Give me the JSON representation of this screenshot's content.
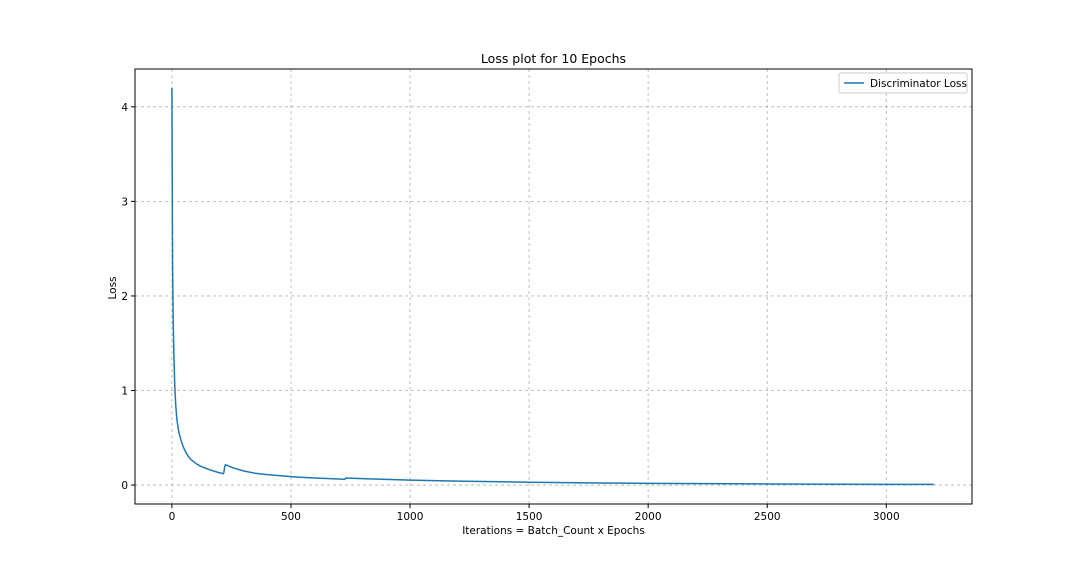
{
  "chart_data": {
    "type": "line",
    "title": "Loss plot for 10 Epochs",
    "xlabel": "Iterations = Batch_Count x Epochs",
    "ylabel": "Loss",
    "xlim": [
      -155,
      3360
    ],
    "ylim": [
      -0.2,
      4.4
    ],
    "xticks": [
      0,
      500,
      1000,
      1500,
      2000,
      2500,
      3000
    ],
    "xtick_labels": [
      "0",
      "500",
      "1000",
      "1500",
      "2000",
      "2500",
      "3000"
    ],
    "yticks": [
      0,
      1,
      2,
      3,
      4
    ],
    "ytick_labels": [
      "0",
      "1",
      "2",
      "3",
      "4"
    ],
    "grid": true,
    "grid_style": "dashed",
    "legend_position": "top-right",
    "series": [
      {
        "name": "Discriminator Loss",
        "color": "#1f77b4",
        "x": [
          0,
          1,
          2,
          3,
          5,
          8,
          12,
          16,
          20,
          25,
          30,
          40,
          50,
          60,
          70,
          80,
          100,
          120,
          140,
          160,
          180,
          200,
          210,
          215,
          218,
          222,
          225,
          230,
          240,
          260,
          300,
          350,
          400,
          450,
          500,
          550,
          600,
          650,
          700,
          720,
          726,
          730,
          740,
          800,
          900,
          1000,
          1200,
          1500,
          1800,
          2000,
          2500,
          3000,
          3200
        ],
        "y": [
          4.2,
          3.5,
          2.8,
          2.3,
          1.8,
          1.4,
          1.05,
          0.85,
          0.72,
          0.62,
          0.55,
          0.46,
          0.39,
          0.34,
          0.3,
          0.27,
          0.23,
          0.2,
          0.18,
          0.16,
          0.145,
          0.13,
          0.125,
          0.12,
          0.13,
          0.2,
          0.215,
          0.21,
          0.2,
          0.18,
          0.15,
          0.125,
          0.11,
          0.1,
          0.09,
          0.082,
          0.075,
          0.07,
          0.065,
          0.062,
          0.06,
          0.075,
          0.074,
          0.068,
          0.06,
          0.053,
          0.042,
          0.03,
          0.022,
          0.018,
          0.012,
          0.008,
          0.007
        ]
      }
    ]
  }
}
